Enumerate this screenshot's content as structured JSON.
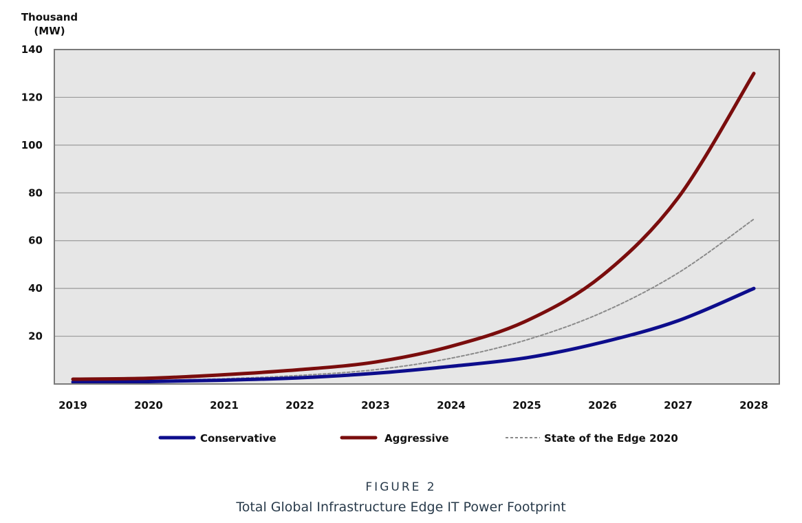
{
  "chart_data": {
    "type": "line",
    "ylabel_lines": [
      "Thousand",
      "(MW)"
    ],
    "categories": [
      "2019",
      "2020",
      "2021",
      "2022",
      "2023",
      "2024",
      "2025",
      "2026",
      "2027",
      "2028"
    ],
    "y_ticks": [
      "20",
      "40",
      "60",
      "80",
      "100",
      "120",
      "140"
    ],
    "ylim": [
      0,
      140
    ],
    "grid": true,
    "legend_position": "bottom",
    "series": [
      {
        "name": "Conservative",
        "color": "#0d0d8c",
        "style": "solid",
        "values": [
          0.8,
          1.0,
          1.6,
          2.6,
          4.5,
          7.4,
          11.0,
          17.5,
          26.5,
          40
        ]
      },
      {
        "name": "Aggressive",
        "color": "#7a0d0d",
        "style": "solid",
        "values": [
          2.0,
          2.4,
          3.9,
          6.0,
          9.2,
          15.8,
          26.5,
          45.5,
          78.0,
          130
        ]
      },
      {
        "name": "State of the Edge 2020",
        "color": "#8a8a8a",
        "style": "dashed",
        "values": [
          1.0,
          1.4,
          2.2,
          3.6,
          6.0,
          10.8,
          18.5,
          30.0,
          46.5,
          69
        ]
      }
    ],
    "plot_background": "#e6e6e6",
    "grid_color": "#9a9a9a"
  },
  "caption": {
    "figure_label": "FIGURE 2",
    "title": "Total Global Infrastructure Edge IT Power Footprint"
  }
}
